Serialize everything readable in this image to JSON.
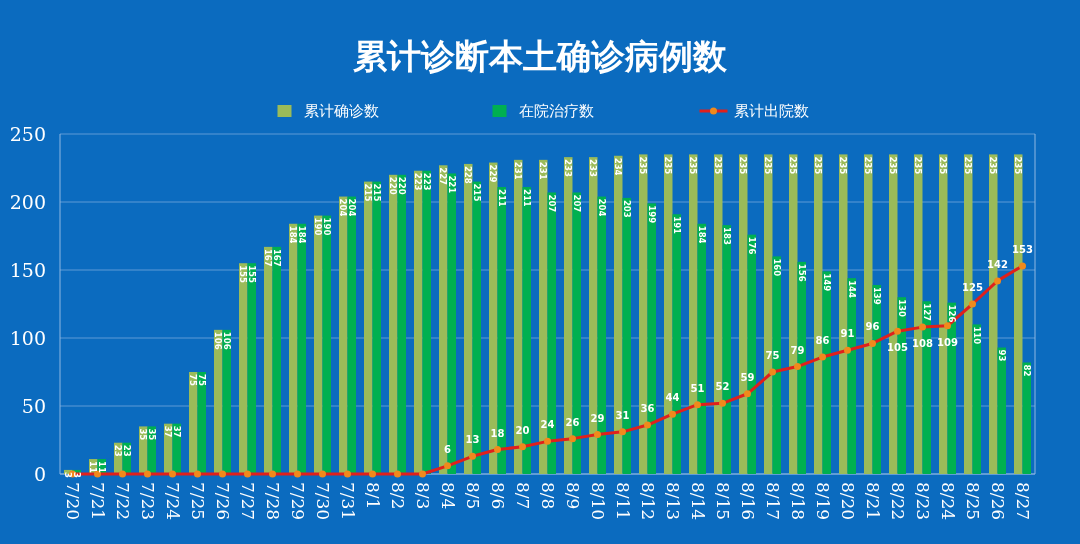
{
  "chart_data": {
    "type": "bar",
    "title": "累计诊断本土确诊病例数",
    "categories": [
      "7/20",
      "7/21",
      "7/22",
      "7/23",
      "7/24",
      "7/25",
      "7/26",
      "7/27",
      "7/28",
      "7/29",
      "7/30",
      "7/31",
      "8/1",
      "8/2",
      "8/3",
      "8/4",
      "8/5",
      "8/6",
      "8/7",
      "8/8",
      "8/9",
      "8/10",
      "8/11",
      "8/12",
      "8/13",
      "8/14",
      "8/15",
      "8/16",
      "8/17",
      "8/18",
      "8/19",
      "8/20",
      "8/21",
      "8/22",
      "8/23",
      "8/24",
      "8/25",
      "8/26",
      "8/27"
    ],
    "series": [
      {
        "name": "累计确诊数",
        "color": "#9bbb59",
        "values": [
          3,
          11,
          23,
          35,
          37,
          75,
          106,
          155,
          167,
          184,
          190,
          204,
          215,
          220,
          223,
          227,
          228,
          229,
          231,
          231,
          233,
          233,
          234,
          235,
          235,
          235,
          235,
          235,
          235,
          235,
          235,
          235,
          235,
          235,
          235,
          235,
          235,
          235,
          235
        ]
      },
      {
        "name": "在院治疗数",
        "color": "#00b050",
        "values": [
          3,
          11,
          23,
          35,
          37,
          75,
          106,
          155,
          167,
          184,
          190,
          204,
          215,
          220,
          223,
          221,
          215,
          211,
          211,
          207,
          207,
          204,
          203,
          199,
          191,
          184,
          183,
          176,
          160,
          156,
          149,
          144,
          139,
          130,
          127,
          126,
          110,
          93,
          82
        ]
      },
      {
        "name": "累计出院数",
        "type": "line",
        "color": "#e0201c",
        "marker": "circle",
        "values": [
          0,
          0,
          0,
          0,
          0,
          0,
          0,
          0,
          0,
          0,
          0,
          0,
          0,
          0,
          0,
          6,
          13,
          18,
          20,
          24,
          26,
          29,
          31,
          36,
          44,
          51,
          52,
          59,
          75,
          79,
          86,
          91,
          96,
          105,
          108,
          109,
          125,
          142,
          153
        ],
        "value_labels": [
          null,
          null,
          null,
          null,
          null,
          null,
          null,
          null,
          null,
          null,
          null,
          null,
          null,
          null,
          null,
          "6",
          "13",
          "18",
          "20",
          "24",
          "26",
          "29",
          "31",
          "36",
          "44",
          "51",
          "52",
          "59",
          "75",
          "79",
          "86",
          "91",
          "96",
          "105",
          "108",
          "109",
          "125",
          "142",
          "153"
        ]
      }
    ],
    "ylim": [
      0,
      250
    ],
    "yticks": [
      0,
      50,
      100,
      150,
      200,
      250
    ],
    "grid": "y",
    "legend": "top",
    "data_labels": true
  }
}
